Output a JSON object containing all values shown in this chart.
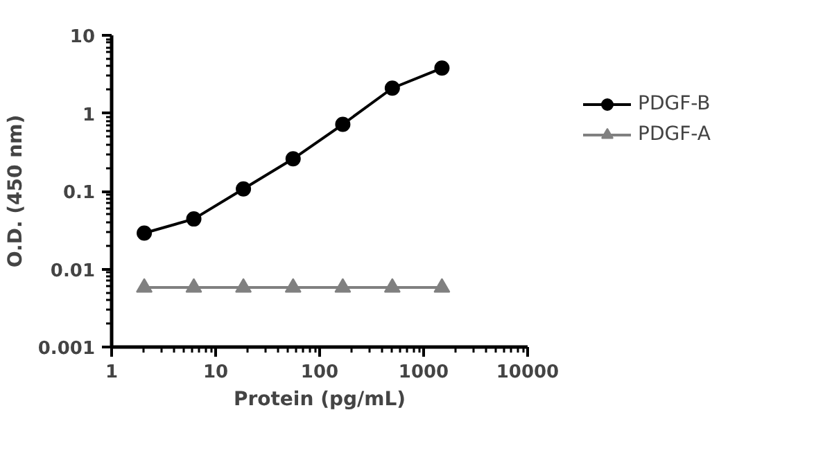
{
  "chart_data": {
    "type": "line",
    "xlabel": "Protein (pg/mL)",
    "ylabel": "O.D. (450 nm)",
    "log": "xy",
    "xlim": [
      1,
      10000
    ],
    "xticks": [
      1,
      10,
      100,
      1000,
      10000
    ],
    "ylim": [
      0.001,
      10
    ],
    "yticks": [
      0.001,
      0.01,
      0.1,
      1,
      10
    ],
    "x": [
      2.06,
      6.17,
      18.5,
      55.6,
      167,
      500,
      1500
    ],
    "series": [
      {
        "name": "PDGF-B",
        "color": "#000000",
        "marker": "circle",
        "values": [
          0.029,
          0.044,
          0.107,
          0.26,
          0.72,
          2.1,
          3.8
        ]
      },
      {
        "name": "PDGF-A",
        "color": "#808080",
        "marker": "triangle",
        "values": [
          0.0058,
          0.0058,
          0.0058,
          0.0058,
          0.0058,
          0.0058,
          0.0058
        ]
      }
    ],
    "grid": false,
    "legend": "right"
  }
}
